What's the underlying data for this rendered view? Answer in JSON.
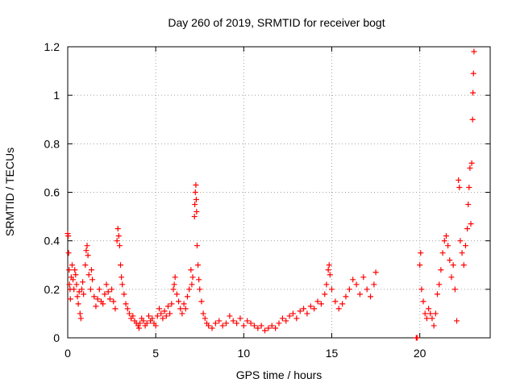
{
  "chart_data": {
    "type": "scatter",
    "title": "Day 260 of 2019, SRMTID for receiver bogt",
    "xlabel": "GPS time / hours",
    "ylabel": "SRMTID / TECUs",
    "xlim": [
      0,
      24
    ],
    "ylim": [
      0,
      1.2
    ],
    "xticks": [
      0,
      5,
      10,
      15,
      20
    ],
    "xtick_labels": [
      "0",
      "5",
      "10",
      "15",
      "20"
    ],
    "yticks": [
      0,
      0.2,
      0.4,
      0.6,
      0.8,
      1.0,
      1.2
    ],
    "ytick_labels": [
      "0",
      "0.2",
      "0.4",
      "0.6",
      "0.8",
      "1",
      "1.2"
    ],
    "grid": true,
    "marker": "+",
    "color": "#ff0000",
    "series": [
      {
        "name": "SRMTID",
        "points": [
          [
            0.0,
            0.43
          ],
          [
            0.03,
            0.42
          ],
          [
            0.05,
            0.35
          ],
          [
            0.08,
            0.28
          ],
          [
            0.1,
            0.22
          ],
          [
            0.13,
            0.2
          ],
          [
            0.15,
            0.16
          ],
          [
            0.2,
            0.25
          ],
          [
            0.25,
            0.3
          ],
          [
            0.3,
            0.24
          ],
          [
            0.35,
            0.2
          ],
          [
            0.4,
            0.28
          ],
          [
            0.45,
            0.26
          ],
          [
            0.5,
            0.22
          ],
          [
            0.55,
            0.17
          ],
          [
            0.6,
            0.14
          ],
          [
            0.65,
            0.19
          ],
          [
            0.7,
            0.1
          ],
          [
            0.75,
            0.08
          ],
          [
            0.8,
            0.2
          ],
          [
            0.85,
            0.23
          ],
          [
            0.9,
            0.18
          ],
          [
            1.0,
            0.3
          ],
          [
            1.05,
            0.36
          ],
          [
            1.1,
            0.38
          ],
          [
            1.15,
            0.34
          ],
          [
            1.2,
            0.26
          ],
          [
            1.3,
            0.2
          ],
          [
            1.35,
            0.28
          ],
          [
            1.4,
            0.24
          ],
          [
            1.5,
            0.17
          ],
          [
            1.6,
            0.13
          ],
          [
            1.7,
            0.16
          ],
          [
            1.8,
            0.2
          ],
          [
            1.9,
            0.15
          ],
          [
            2.0,
            0.14
          ],
          [
            2.1,
            0.18
          ],
          [
            2.2,
            0.22
          ],
          [
            2.3,
            0.19
          ],
          [
            2.4,
            0.16
          ],
          [
            2.5,
            0.2
          ],
          [
            2.6,
            0.15
          ],
          [
            2.7,
            0.12
          ],
          [
            2.8,
            0.4
          ],
          [
            2.85,
            0.45
          ],
          [
            2.9,
            0.42
          ],
          [
            2.95,
            0.38
          ],
          [
            3.0,
            0.3
          ],
          [
            3.05,
            0.25
          ],
          [
            3.1,
            0.22
          ],
          [
            3.2,
            0.18
          ],
          [
            3.3,
            0.14
          ],
          [
            3.4,
            0.12
          ],
          [
            3.5,
            0.1
          ],
          [
            3.6,
            0.08
          ],
          [
            3.7,
            0.09
          ],
          [
            3.8,
            0.07
          ],
          [
            3.9,
            0.06
          ],
          [
            4.0,
            0.05
          ],
          [
            4.05,
            0.04
          ],
          [
            4.1,
            0.06
          ],
          [
            4.2,
            0.08
          ],
          [
            4.3,
            0.07
          ],
          [
            4.4,
            0.05
          ],
          [
            4.5,
            0.06
          ],
          [
            4.6,
            0.09
          ],
          [
            4.7,
            0.07
          ],
          [
            4.8,
            0.08
          ],
          [
            4.9,
            0.06
          ],
          [
            5.0,
            0.05
          ],
          [
            5.1,
            0.09
          ],
          [
            5.2,
            0.12
          ],
          [
            5.3,
            0.1
          ],
          [
            5.4,
            0.08
          ],
          [
            5.5,
            0.11
          ],
          [
            5.6,
            0.09
          ],
          [
            5.7,
            0.13
          ],
          [
            5.8,
            0.1
          ],
          [
            5.9,
            0.14
          ],
          [
            6.0,
            0.2
          ],
          [
            6.05,
            0.22
          ],
          [
            6.1,
            0.25
          ],
          [
            6.2,
            0.18
          ],
          [
            6.3,
            0.15
          ],
          [
            6.4,
            0.12
          ],
          [
            6.5,
            0.1
          ],
          [
            6.6,
            0.14
          ],
          [
            6.7,
            0.12
          ],
          [
            6.8,
            0.17
          ],
          [
            6.9,
            0.2
          ],
          [
            7.0,
            0.28
          ],
          [
            7.05,
            0.22
          ],
          [
            7.1,
            0.25
          ],
          [
            7.2,
            0.5
          ],
          [
            7.22,
            0.55
          ],
          [
            7.25,
            0.6
          ],
          [
            7.28,
            0.63
          ],
          [
            7.3,
            0.57
          ],
          [
            7.32,
            0.52
          ],
          [
            7.35,
            0.38
          ],
          [
            7.4,
            0.3
          ],
          [
            7.45,
            0.24
          ],
          [
            7.5,
            0.2
          ],
          [
            7.6,
            0.15
          ],
          [
            7.7,
            0.1
          ],
          [
            7.8,
            0.08
          ],
          [
            7.9,
            0.06
          ],
          [
            8.0,
            0.05
          ],
          [
            8.2,
            0.04
          ],
          [
            8.4,
            0.06
          ],
          [
            8.6,
            0.07
          ],
          [
            8.8,
            0.05
          ],
          [
            9.0,
            0.06
          ],
          [
            9.2,
            0.09
          ],
          [
            9.4,
            0.07
          ],
          [
            9.6,
            0.06
          ],
          [
            9.8,
            0.08
          ],
          [
            10.0,
            0.05
          ],
          [
            10.2,
            0.07
          ],
          [
            10.4,
            0.06
          ],
          [
            10.6,
            0.05
          ],
          [
            10.8,
            0.04
          ],
          [
            11.0,
            0.05
          ],
          [
            11.2,
            0.03
          ],
          [
            11.4,
            0.04
          ],
          [
            11.6,
            0.05
          ],
          [
            11.8,
            0.04
          ],
          [
            12.0,
            0.06
          ],
          [
            12.2,
            0.08
          ],
          [
            12.4,
            0.07
          ],
          [
            12.6,
            0.09
          ],
          [
            12.8,
            0.1
          ],
          [
            13.0,
            0.08
          ],
          [
            13.2,
            0.11
          ],
          [
            13.4,
            0.12
          ],
          [
            13.6,
            0.1
          ],
          [
            13.8,
            0.13
          ],
          [
            14.0,
            0.12
          ],
          [
            14.2,
            0.15
          ],
          [
            14.4,
            0.14
          ],
          [
            14.6,
            0.18
          ],
          [
            14.7,
            0.22
          ],
          [
            14.8,
            0.28
          ],
          [
            14.85,
            0.3
          ],
          [
            14.9,
            0.26
          ],
          [
            15.0,
            0.2
          ],
          [
            15.2,
            0.15
          ],
          [
            15.4,
            0.12
          ],
          [
            15.6,
            0.14
          ],
          [
            15.8,
            0.17
          ],
          [
            16.0,
            0.2
          ],
          [
            16.2,
            0.24
          ],
          [
            16.4,
            0.22
          ],
          [
            16.6,
            0.18
          ],
          [
            16.8,
            0.25
          ],
          [
            17.0,
            0.2
          ],
          [
            17.2,
            0.17
          ],
          [
            17.4,
            0.22
          ],
          [
            17.5,
            0.27
          ],
          [
            19.8,
            0.0
          ],
          [
            19.85,
            0.0
          ],
          [
            20.0,
            0.3
          ],
          [
            20.05,
            0.35
          ],
          [
            20.1,
            0.2
          ],
          [
            20.2,
            0.15
          ],
          [
            20.3,
            0.1
          ],
          [
            20.4,
            0.08
          ],
          [
            20.5,
            0.12
          ],
          [
            20.6,
            0.1
          ],
          [
            20.7,
            0.08
          ],
          [
            20.8,
            0.05
          ],
          [
            20.9,
            0.1
          ],
          [
            21.0,
            0.18
          ],
          [
            21.1,
            0.22
          ],
          [
            21.2,
            0.28
          ],
          [
            21.3,
            0.35
          ],
          [
            21.4,
            0.4
          ],
          [
            21.5,
            0.42
          ],
          [
            21.6,
            0.38
          ],
          [
            21.7,
            0.32
          ],
          [
            21.8,
            0.25
          ],
          [
            21.9,
            0.3
          ],
          [
            22.0,
            0.2
          ],
          [
            22.1,
            0.07
          ],
          [
            22.2,
            0.65
          ],
          [
            22.25,
            0.62
          ],
          [
            22.3,
            0.4
          ],
          [
            22.4,
            0.35
          ],
          [
            22.5,
            0.3
          ],
          [
            22.6,
            0.38
          ],
          [
            22.7,
            0.45
          ],
          [
            22.75,
            0.55
          ],
          [
            22.8,
            0.62
          ],
          [
            22.85,
            0.7
          ],
          [
            22.9,
            0.47
          ],
          [
            22.95,
            0.72
          ],
          [
            23.0,
            0.9
          ],
          [
            23.02,
            1.01
          ],
          [
            23.05,
            1.09
          ],
          [
            23.08,
            1.18
          ]
        ]
      }
    ]
  }
}
